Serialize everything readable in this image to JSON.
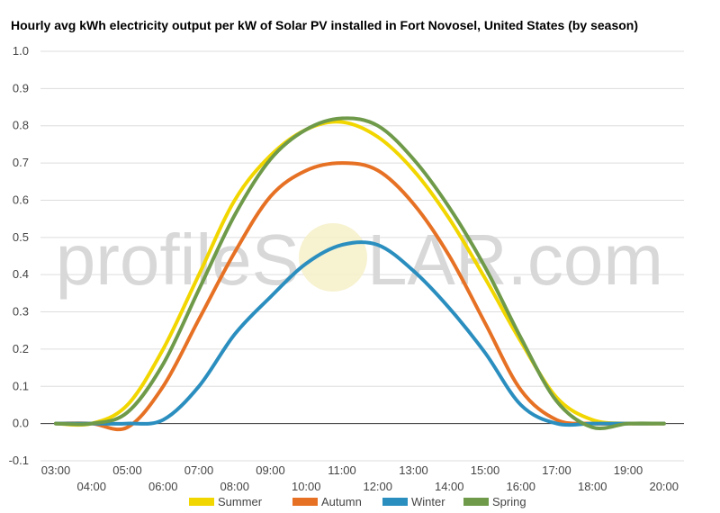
{
  "chart_data": {
    "type": "line",
    "title": "Hourly avg kWh electricity output per kW of Solar PV installed in Fort Novosel, United States (by season)",
    "xlabel": "",
    "ylabel": "",
    "ylim": [
      -0.1,
      1.0
    ],
    "yticks": [
      "-0.1",
      "0.0",
      "0.1",
      "0.2",
      "0.3",
      "0.4",
      "0.5",
      "0.6",
      "0.7",
      "0.8",
      "0.9",
      "1.0"
    ],
    "x": [
      "03:00",
      "04:00",
      "05:00",
      "06:00",
      "07:00",
      "08:00",
      "09:00",
      "10:00",
      "11:00",
      "12:00",
      "13:00",
      "14:00",
      "15:00",
      "16:00",
      "17:00",
      "18:00",
      "19:00",
      "20:00"
    ],
    "grid": true,
    "legend_position": "bottom",
    "series": [
      {
        "name": "Summer",
        "color": "#f2d600",
        "values": [
          0.0,
          0.0,
          0.05,
          0.2,
          0.4,
          0.6,
          0.72,
          0.79,
          0.81,
          0.77,
          0.68,
          0.55,
          0.39,
          0.22,
          0.07,
          0.01,
          0.0,
          0.0
        ]
      },
      {
        "name": "Autumn",
        "color": "#e67124",
        "values": [
          0.0,
          0.0,
          -0.01,
          0.1,
          0.28,
          0.46,
          0.61,
          0.68,
          0.7,
          0.68,
          0.59,
          0.45,
          0.27,
          0.09,
          0.01,
          0.0,
          0.0,
          0.0
        ]
      },
      {
        "name": "Winter",
        "color": "#2a8ebf",
        "values": [
          0.0,
          0.0,
          0.0,
          0.01,
          0.1,
          0.24,
          0.34,
          0.43,
          0.48,
          0.48,
          0.41,
          0.31,
          0.19,
          0.05,
          0.0,
          0.0,
          0.0,
          0.0
        ]
      },
      {
        "name": "Spring",
        "color": "#6e9a49",
        "values": [
          0.0,
          0.0,
          0.03,
          0.16,
          0.36,
          0.56,
          0.71,
          0.79,
          0.82,
          0.8,
          0.71,
          0.58,
          0.42,
          0.23,
          0.06,
          -0.01,
          0.0,
          0.0
        ]
      }
    ]
  },
  "watermark": {
    "left": "profileS",
    "right": "LAR.com"
  }
}
